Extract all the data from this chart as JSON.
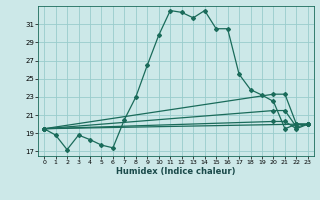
{
  "title": "",
  "xlabel": "Humidex (Indice chaleur)",
  "background_color": "#cce8e8",
  "grid_color": "#99cccc",
  "line_color": "#1a6b5a",
  "xlim": [
    -0.5,
    23.5
  ],
  "ylim": [
    16.5,
    33.0
  ],
  "yticks": [
    17,
    19,
    21,
    23,
    25,
    27,
    29,
    31
  ],
  "xticks": [
    0,
    1,
    2,
    3,
    4,
    5,
    6,
    7,
    8,
    9,
    10,
    11,
    12,
    13,
    14,
    15,
    16,
    17,
    18,
    19,
    20,
    21,
    22,
    23
  ],
  "main_curve": {
    "x": [
      0,
      1,
      2,
      3,
      4,
      5,
      6,
      7,
      8,
      9,
      10,
      11,
      12,
      13,
      14,
      15,
      16,
      17,
      18,
      19,
      20,
      21,
      22,
      23
    ],
    "y": [
      19.5,
      18.8,
      17.2,
      18.8,
      18.3,
      17.7,
      17.4,
      20.5,
      23.0,
      26.5,
      29.8,
      32.5,
      32.3,
      31.7,
      32.5,
      30.5,
      30.5,
      25.5,
      23.8,
      23.2,
      22.5,
      19.5,
      20.0,
      20.0
    ]
  },
  "trend_lines": [
    {
      "x": [
        0,
        20,
        21,
        22,
        23
      ],
      "y": [
        19.5,
        23.3,
        23.3,
        20.0,
        20.0
      ]
    },
    {
      "x": [
        0,
        20,
        21,
        22,
        23
      ],
      "y": [
        19.5,
        21.5,
        21.5,
        19.7,
        20.0
      ]
    },
    {
      "x": [
        0,
        20,
        21,
        22,
        23
      ],
      "y": [
        19.5,
        20.3,
        20.3,
        19.5,
        20.0
      ]
    }
  ]
}
